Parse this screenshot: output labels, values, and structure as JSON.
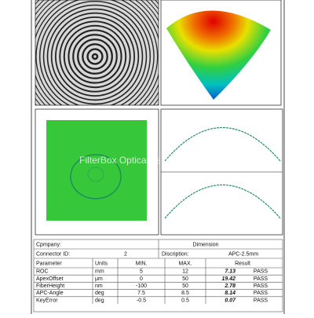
{
  "report": {
    "watermark": "FilterBox Optical Technology,Inc.",
    "company_label": "Cpmpany:",
    "dimension_label": "Dimension",
    "connector_label": "Connector  ID:",
    "connector_id": "2",
    "description_label": "Discription:",
    "description": "APC-2.5mm",
    "table": {
      "columns": [
        "Parameter",
        "Units",
        "MIN.",
        "MAX.",
        "Result"
      ],
      "rows": [
        [
          "ROC",
          "mm",
          "5",
          "12",
          "7.13",
          "PASS"
        ],
        [
          "ApexOffset",
          "μm",
          "0",
          "50",
          "19.42",
          "PASS"
        ],
        [
          "FiberHeight",
          "nm",
          "-100",
          "50",
          "2.78",
          "PASS"
        ],
        [
          "APC-Angle",
          "deg",
          "7.5",
          "8.5",
          "8.14",
          "PASS"
        ],
        [
          "KeyError",
          "deg",
          "-0.5",
          "0.5",
          "0.07",
          "PASS"
        ]
      ]
    }
  }
}
